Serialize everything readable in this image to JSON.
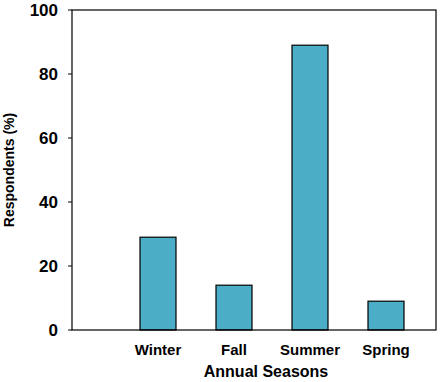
{
  "chart_data": {
    "type": "bar",
    "x_label": "Annual Seasons",
    "y_label": "Respondents (%)",
    "categories": [
      "Winter",
      "Fall",
      "Summer",
      "Spring"
    ],
    "values": [
      29,
      14,
      89,
      9
    ],
    "color": "#4badc6",
    "ylim": [
      0,
      100
    ],
    "yticks": [
      0,
      20,
      40,
      60,
      80,
      100
    ],
    "grid": false
  }
}
